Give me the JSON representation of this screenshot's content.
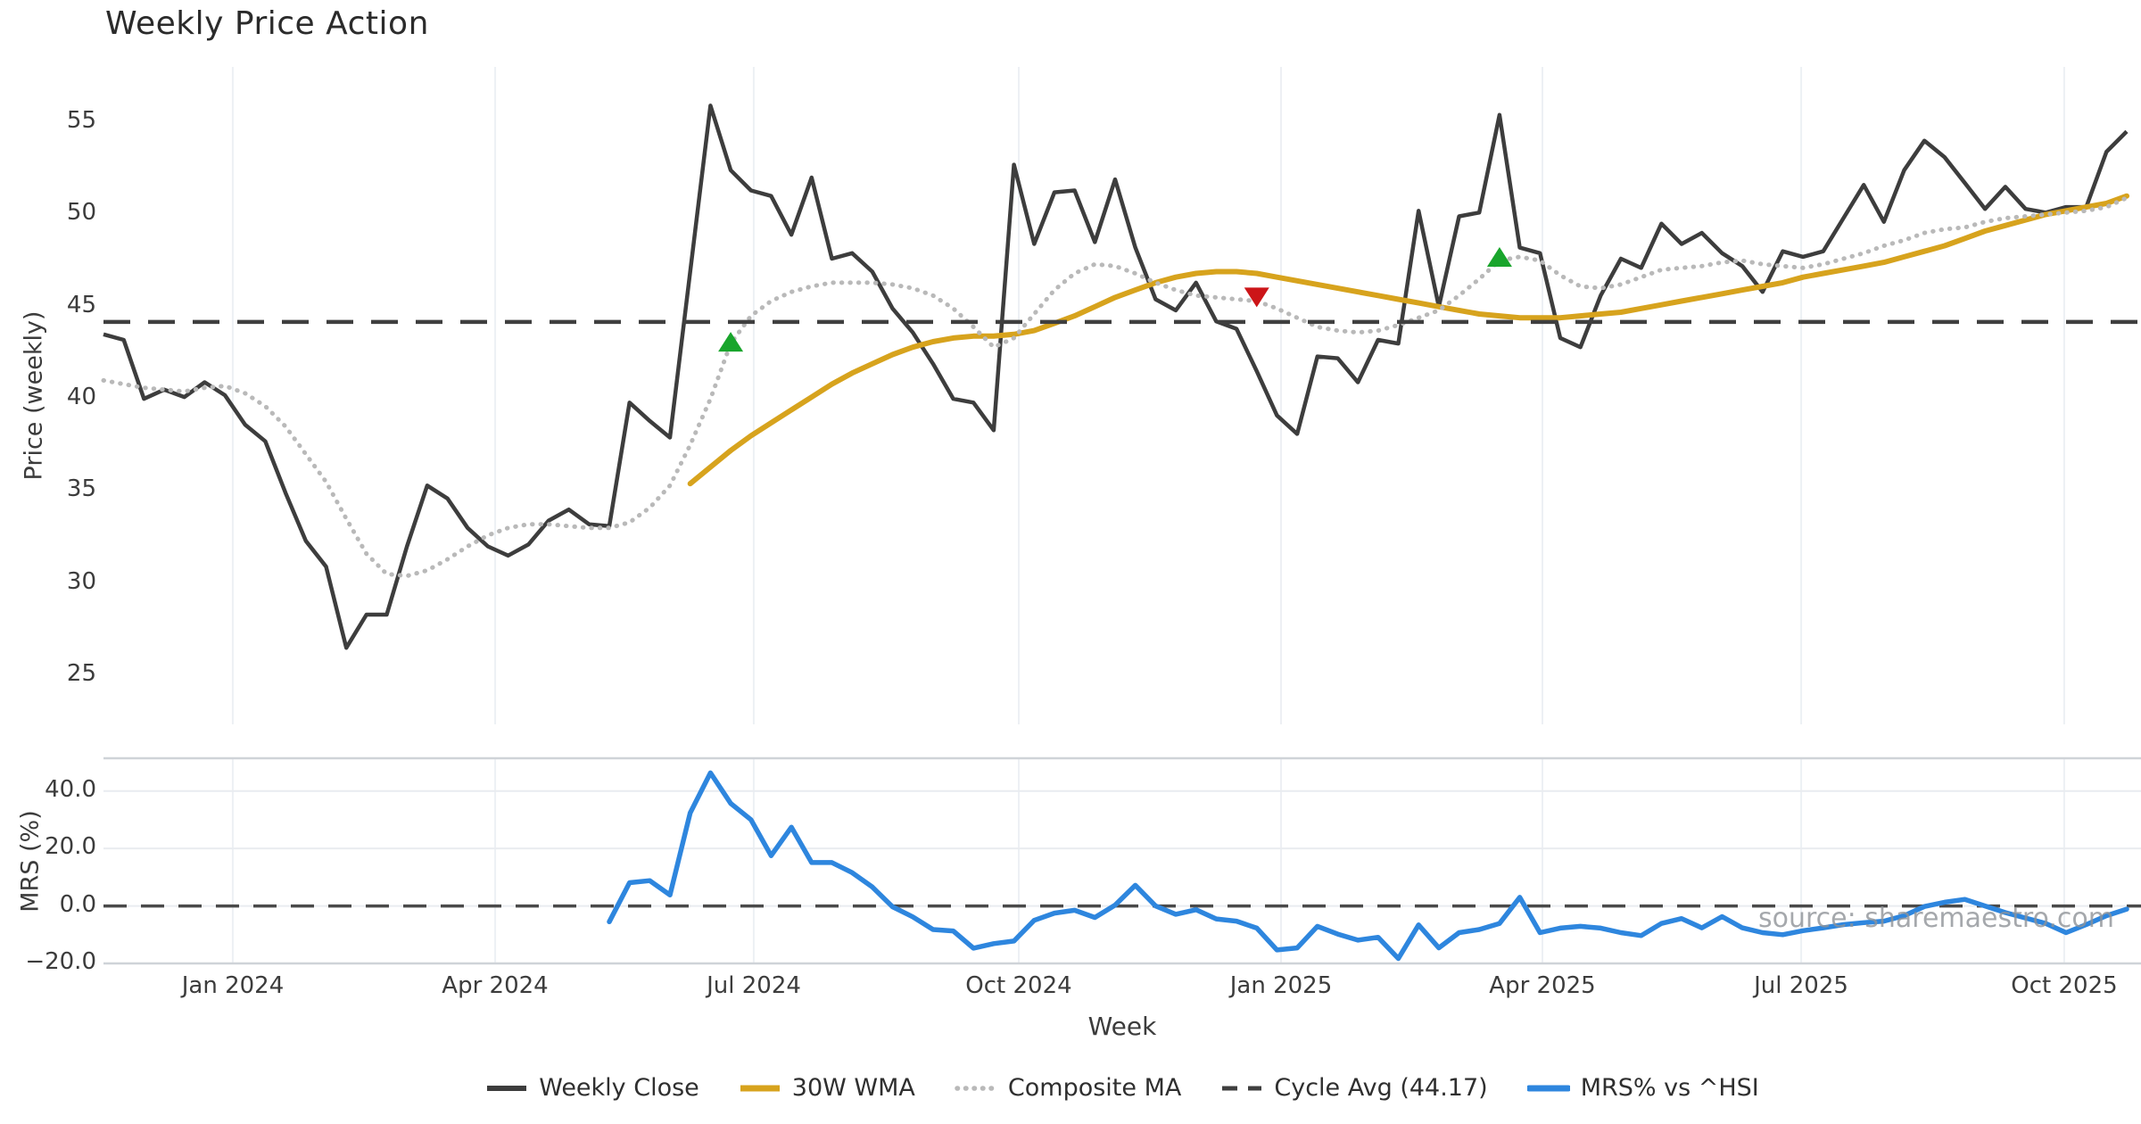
{
  "title": "Weekly Price Action",
  "source_text": "source: sharemaestro.com",
  "xlabel": "Week",
  "colors": {
    "weekly_close": "#3d3d3d",
    "wma30": "#d7a31d",
    "composite_ma": "#b9b9b9",
    "cycle_avg": "#3f3f3f",
    "mrs": "#2e86de",
    "buy_marker": "#19a52c",
    "sell_marker": "#cc1518",
    "gridline": "#edf0f4",
    "source_text": "#8f9398"
  },
  "legend": [
    {
      "label": "Weekly Close",
      "key": "weekly_close"
    },
    {
      "label": "30W WMA",
      "key": "wma30"
    },
    {
      "label": "Composite MA",
      "key": "composite"
    },
    {
      "label": "Cycle Avg (44.17)",
      "key": "cycle_avg"
    },
    {
      "label": "MRS% vs ^HSI",
      "key": "mrs"
    }
  ],
  "chart_data": [
    {
      "type": "line",
      "title": "Weekly Price Action",
      "ylabel": "Price (weekly)",
      "ylim": [
        22.35,
        58.0
      ],
      "x_unit": "week_index",
      "grid": "vertical-only",
      "yticks": [
        {
          "v": 55,
          "label": "55"
        },
        {
          "v": 50,
          "label": "50"
        },
        {
          "v": 45,
          "label": "45"
        },
        {
          "v": 40,
          "label": "40"
        },
        {
          "v": 35,
          "label": "35"
        },
        {
          "v": 30,
          "label": "30"
        },
        {
          "v": 25,
          "label": "25"
        }
      ],
      "xticks": [
        {
          "week": 6.39,
          "label": "Jan 2024"
        },
        {
          "week": 19.36,
          "label": "Apr 2024"
        },
        {
          "week": 32.14,
          "label": "Jul 2024"
        },
        {
          "week": 45.24,
          "label": "Oct 2024"
        },
        {
          "week": 58.2,
          "label": "Jan 2025"
        },
        {
          "week": 71.12,
          "label": "Apr 2025"
        },
        {
          "week": 83.91,
          "label": "Jul 2025"
        },
        {
          "week": 96.91,
          "label": "Oct 2025"
        }
      ],
      "series": [
        {
          "name": "Weekly Close",
          "key": "weekly_close",
          "style": "solid",
          "start_week": 0,
          "values": [
            43.5,
            43.2,
            40.0,
            40.5,
            40.1,
            40.9,
            40.2,
            38.6,
            37.7,
            34.9,
            32.3,
            30.9,
            26.5,
            28.3,
            28.3,
            32.0,
            35.3,
            34.6,
            33.0,
            32.0,
            31.5,
            32.1,
            33.4,
            34.0,
            33.2,
            33.1,
            39.8,
            38.8,
            37.9,
            46.9,
            55.9,
            52.4,
            51.3,
            51.0,
            48.9,
            52.0,
            47.6,
            47.9,
            46.9,
            44.9,
            43.6,
            41.9,
            40.0,
            39.8,
            38.3,
            52.7,
            48.4,
            51.2,
            51.3,
            48.5,
            51.9,
            48.2,
            45.4,
            44.8,
            46.3,
            44.2,
            43.8,
            41.5,
            39.1,
            38.1,
            42.3,
            42.2,
            40.9,
            43.2,
            43.0,
            50.2,
            45.0,
            49.9,
            50.1,
            55.4,
            48.2,
            47.9,
            43.3,
            42.8,
            45.6,
            47.6,
            47.1,
            49.5,
            48.4,
            49.0,
            47.9,
            47.2,
            45.8,
            48.0,
            47.7,
            48.0,
            49.8,
            51.6,
            49.6,
            52.4,
            54.0,
            53.1,
            51.7,
            50.3,
            51.5,
            50.3,
            50.1,
            50.4,
            50.4,
            53.4,
            54.5
          ]
        },
        {
          "name": "30W WMA",
          "key": "wma30",
          "style": "solid",
          "start_week": 29,
          "values": [
            35.4,
            36.3,
            37.2,
            38.0,
            38.7,
            39.4,
            40.1,
            40.8,
            41.4,
            41.9,
            42.4,
            42.8,
            43.1,
            43.3,
            43.4,
            43.4,
            43.5,
            43.7,
            44.1,
            44.5,
            45.0,
            45.5,
            45.9,
            46.3,
            46.6,
            46.8,
            46.9,
            46.9,
            46.8,
            46.6,
            46.4,
            46.2,
            46.0,
            45.8,
            45.6,
            45.4,
            45.2,
            45.0,
            44.8,
            44.6,
            44.5,
            44.4,
            44.4,
            44.4,
            44.5,
            44.6,
            44.7,
            44.9,
            45.1,
            45.3,
            45.5,
            45.7,
            45.9,
            46.1,
            46.3,
            46.6,
            46.8,
            47.0,
            47.2,
            47.4,
            47.7,
            48.0,
            48.3,
            48.7,
            49.1,
            49.4,
            49.7,
            50.0,
            50.2,
            50.4,
            50.6,
            51.0
          ]
        },
        {
          "name": "Composite MA",
          "key": "composite",
          "style": "dotted",
          "start_week": 0,
          "values": [
            41.0,
            40.8,
            40.6,
            40.5,
            40.4,
            40.6,
            40.7,
            40.3,
            39.6,
            38.5,
            37.0,
            35.5,
            33.5,
            31.6,
            30.5,
            30.4,
            30.7,
            31.3,
            32.0,
            32.6,
            33.0,
            33.2,
            33.2,
            33.1,
            33.0,
            33.0,
            33.3,
            34.1,
            35.3,
            37.5,
            40.0,
            43.0,
            44.5,
            45.3,
            45.8,
            46.1,
            46.3,
            46.3,
            46.3,
            46.2,
            46.0,
            45.6,
            44.9,
            43.9,
            42.8,
            43.3,
            44.6,
            45.9,
            46.8,
            47.3,
            47.2,
            46.8,
            46.3,
            45.9,
            45.6,
            45.5,
            45.4,
            45.3,
            44.9,
            44.4,
            43.9,
            43.7,
            43.6,
            43.7,
            44.0,
            44.4,
            44.8,
            45.6,
            46.5,
            47.5,
            47.7,
            47.5,
            46.7,
            46.1,
            46.0,
            46.2,
            46.6,
            47.0,
            47.1,
            47.2,
            47.4,
            47.5,
            47.3,
            47.2,
            47.1,
            47.3,
            47.6,
            47.9,
            48.3,
            48.6,
            49.0,
            49.2,
            49.3,
            49.6,
            49.8,
            49.9,
            50.0,
            50.1,
            50.2,
            50.4,
            50.9
          ]
        },
        {
          "name": "Cycle Avg (44.17)",
          "key": "cycle_avg",
          "style": "dashed",
          "const_value": 44.17
        }
      ],
      "markers": [
        {
          "week": 31,
          "value": 43.0,
          "shape": "triangle-up",
          "signal": "buy"
        },
        {
          "week": 57,
          "value": 45.6,
          "shape": "triangle-down",
          "signal": "sell"
        },
        {
          "week": 69,
          "value": 47.6,
          "shape": "triangle-up",
          "signal": "buy"
        }
      ]
    },
    {
      "type": "line",
      "ylabel": "MRS (%)",
      "xlabel": "Week",
      "ylim": [
        -20,
        51.4
      ],
      "x_unit": "week_index",
      "grid": "both",
      "yticks": [
        {
          "v": 40,
          "label": "40.0"
        },
        {
          "v": 20,
          "label": "20.0"
        },
        {
          "v": 0,
          "label": "0.0"
        },
        {
          "v": -20,
          "label": "−20.0"
        }
      ],
      "xticks": [
        {
          "week": 6.39,
          "label": "Jan 2024"
        },
        {
          "week": 19.36,
          "label": "Apr 2024"
        },
        {
          "week": 32.14,
          "label": "Jul 2024"
        },
        {
          "week": 45.24,
          "label": "Oct 2024"
        },
        {
          "week": 58.2,
          "label": "Jan 2025"
        },
        {
          "week": 71.12,
          "label": "Apr 2025"
        },
        {
          "week": 83.91,
          "label": "Jul 2025"
        },
        {
          "week": 96.91,
          "label": "Oct 2025"
        }
      ],
      "series": [
        {
          "name": "MRS% vs ^HSI",
          "key": "mrs",
          "style": "solid",
          "start_week": 25,
          "values": [
            -5.5,
            8.1,
            8.8,
            3.8,
            32.4,
            46.3,
            35.7,
            30.0,
            17.5,
            27.4,
            15.1,
            15.1,
            11.6,
            6.6,
            -0.3,
            -3.8,
            -8.2,
            -8.7,
            -14.7,
            -13.1,
            -12.2,
            -5.0,
            -2.5,
            -1.5,
            -4.0,
            0.3,
            7.2,
            0.0,
            -2.9,
            -1.3,
            -4.5,
            -5.3,
            -7.7,
            -15.3,
            -14.6,
            -7.1,
            -9.8,
            -11.9,
            -10.9,
            -18.3,
            -6.6,
            -14.6,
            -9.3,
            -8.2,
            -6.1,
            3.0,
            -9.3,
            -7.7,
            -7.1,
            -7.7,
            -9.3,
            -10.3,
            -6.1,
            -4.4,
            -7.6,
            -3.7,
            -7.6,
            -9.3,
            -10.0,
            -8.6,
            -7.6,
            -6.5,
            -5.8,
            -5.3,
            -3.4,
            -0.2,
            1.3,
            2.3,
            0.0,
            -2.3,
            -4.2,
            -6.1,
            -9.3,
            -6.5,
            -3.4,
            -1.1
          ]
        },
        {
          "name": "Zero line",
          "key": "zero",
          "style": "dashed",
          "const_value": 0
        }
      ]
    }
  ]
}
